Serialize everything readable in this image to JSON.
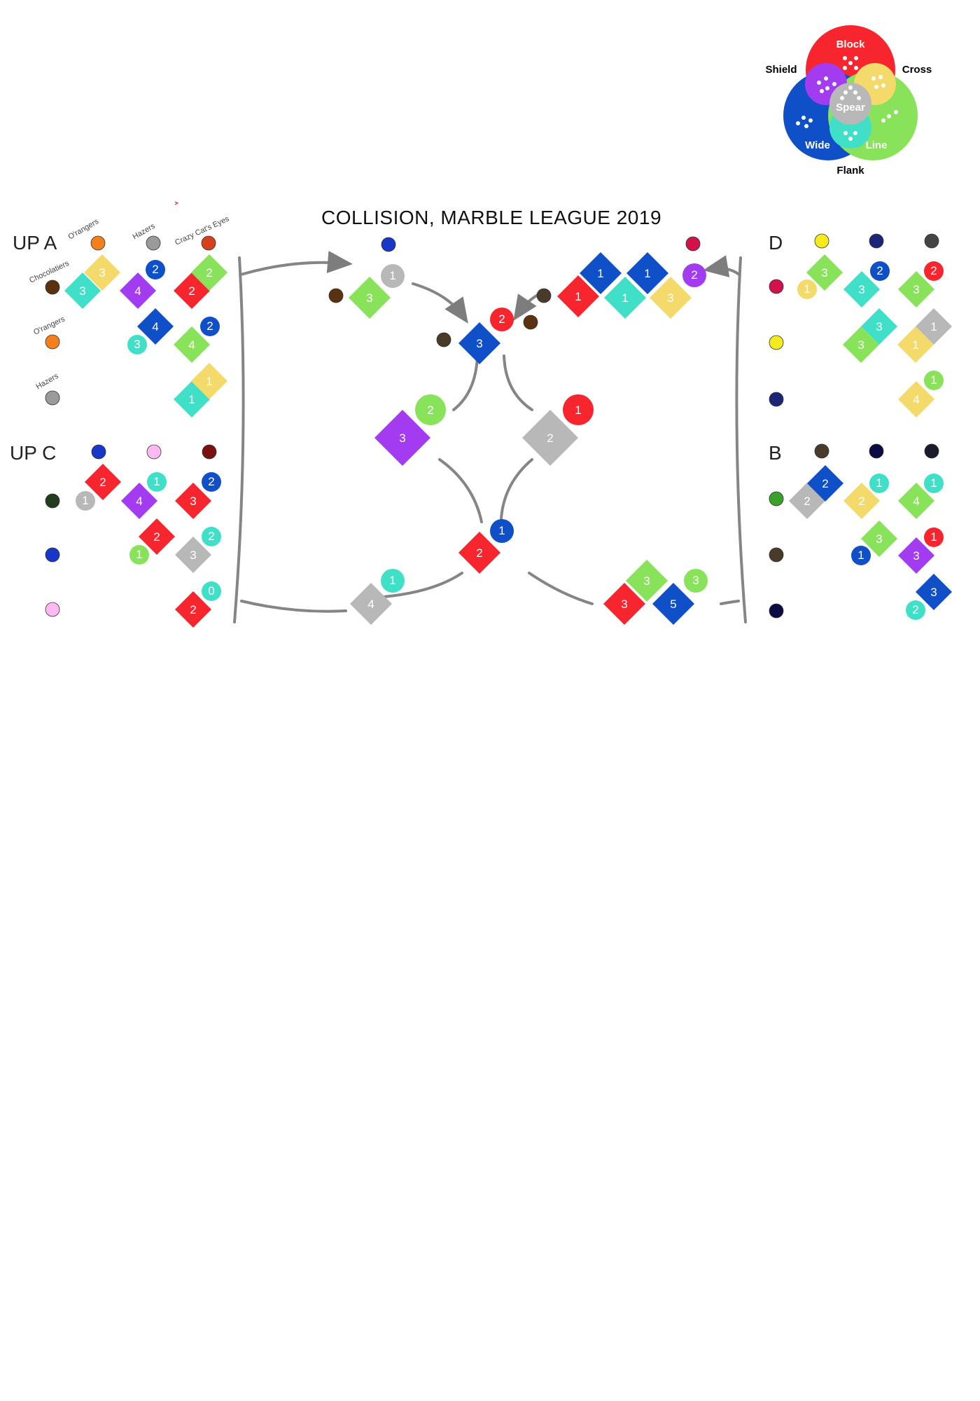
{
  "title": "COLLISION, MARBLE LEAGUE 2019",
  "colors": {
    "Block": "#f7262e",
    "Cross": "#f3da6a",
    "Line": "#88e35a",
    "Flank": "#40e0c8",
    "Wide": "#0f4fc8",
    "Shield": "#a33cf0",
    "Spear": "#b8b8b8"
  },
  "legend": {
    "block": "Block",
    "cross": "Cross",
    "line": "Line",
    "flank": "Flank",
    "wide": "Wide",
    "shield": "Shield",
    "spear": "Spear"
  },
  "groups": {
    "upa": "UP A",
    "upc": "UP C",
    "d": "D",
    "b": "B"
  },
  "teams": {
    "orangers": "O'rangers",
    "hazers": "Hazers",
    "crazy_cats_eyes": "Crazy Cat's Eyes",
    "chocolatiers": "Chocolatiers"
  },
  "marble_colors": {
    "orangers": "#f47f1c",
    "hazers": "#9a9a9a",
    "chocolatiers": "#5a3210",
    "crazy_cats_eyes": "#d7401c",
    "blue_stripe": "#1737c9",
    "pink": "#ffb9f2",
    "maroon": "#7a1010",
    "darkgreen": "#213d1e",
    "crimson": "#d1124b",
    "yellow": "#f5ea1c",
    "navy": "#1c2576",
    "charcoal": "#444444",
    "green_ball": "#3aa22a",
    "dark_navy": "#0c0c45"
  },
  "marks": [
    {
      "id": "upa-1",
      "shape": "diamond",
      "style": "Flank",
      "value": "3"
    },
    {
      "id": "upa-2",
      "shape": "diamond",
      "style": "Cross",
      "value": "3"
    },
    {
      "id": "upa-3",
      "shape": "diamond",
      "style": "Shield",
      "value": "4"
    },
    {
      "id": "upa-4",
      "shape": "circle",
      "style": "Wide",
      "value": "2"
    },
    {
      "id": "upa-5",
      "shape": "diamond",
      "style": "Block",
      "value": "2"
    },
    {
      "id": "upa-6",
      "shape": "diamond",
      "style": "Line",
      "value": "2"
    },
    {
      "id": "upa-7",
      "shape": "circle",
      "style": "Flank",
      "value": "3"
    },
    {
      "id": "upa-8",
      "shape": "diamond",
      "style": "Wide",
      "value": "4"
    },
    {
      "id": "upa-9",
      "shape": "diamond",
      "style": "Line",
      "value": "4"
    },
    {
      "id": "upa-10",
      "shape": "circle",
      "style": "Wide",
      "value": "2"
    },
    {
      "id": "upa-11",
      "shape": "diamond",
      "style": "Flank",
      "value": "1"
    },
    {
      "id": "upa-12",
      "shape": "diamond",
      "style": "Cross",
      "value": "1"
    },
    {
      "id": "upc-1",
      "shape": "circle",
      "style": "Spear",
      "value": "1"
    },
    {
      "id": "upc-2",
      "shape": "diamond",
      "style": "Block",
      "value": "2"
    },
    {
      "id": "upc-3",
      "shape": "diamond",
      "style": "Shield",
      "value": "4"
    },
    {
      "id": "upc-4",
      "shape": "circle",
      "style": "Flank",
      "value": "1"
    },
    {
      "id": "upc-5",
      "shape": "diamond",
      "style": "Block",
      "value": "3"
    },
    {
      "id": "upc-6",
      "shape": "circle",
      "style": "Wide",
      "value": "2"
    },
    {
      "id": "upc-7",
      "shape": "circle",
      "style": "Line",
      "value": "1"
    },
    {
      "id": "upc-8",
      "shape": "diamond",
      "style": "Block",
      "value": "2"
    },
    {
      "id": "upc-9",
      "shape": "diamond",
      "style": "Spear",
      "value": "3"
    },
    {
      "id": "upc-10",
      "shape": "circle",
      "style": "Flank",
      "value": "2"
    },
    {
      "id": "upc-11",
      "shape": "diamond",
      "style": "Block",
      "value": "2"
    },
    {
      "id": "upc-12",
      "shape": "circle",
      "style": "Flank",
      "value": "0"
    },
    {
      "id": "c-1",
      "shape": "circle",
      "style": "Spear",
      "value": "1"
    },
    {
      "id": "c-2",
      "shape": "diamond",
      "style": "Line",
      "value": "3"
    },
    {
      "id": "c-3",
      "shape": "diamond",
      "style": "Block",
      "value": "1"
    },
    {
      "id": "c-4",
      "shape": "diamond",
      "style": "Wide",
      "value": "1"
    },
    {
      "id": "c-5",
      "shape": "diamond",
      "style": "Flank",
      "value": "1"
    },
    {
      "id": "c-6",
      "shape": "diamond",
      "style": "Wide",
      "value": "1"
    },
    {
      "id": "c-7",
      "shape": "diamond",
      "style": "Cross",
      "value": "3"
    },
    {
      "id": "c-8",
      "shape": "circle",
      "style": "Shield",
      "value": "2"
    },
    {
      "id": "c-9",
      "shape": "circle",
      "style": "Block",
      "value": "2"
    },
    {
      "id": "c-10",
      "shape": "diamond",
      "style": "Wide",
      "value": "3"
    },
    {
      "id": "c-11",
      "shape": "diamond",
      "style": "Shield",
      "value": "3"
    },
    {
      "id": "c-12",
      "shape": "circle",
      "style": "Line",
      "value": "2"
    },
    {
      "id": "c-13",
      "shape": "diamond",
      "style": "Spear",
      "value": "2"
    },
    {
      "id": "c-14",
      "shape": "circle",
      "style": "Block",
      "value": "1"
    },
    {
      "id": "c-15",
      "shape": "diamond",
      "style": "Block",
      "value": "2"
    },
    {
      "id": "c-16",
      "shape": "circle",
      "style": "Wide",
      "value": "1"
    },
    {
      "id": "c-17",
      "shape": "diamond",
      "style": "Spear",
      "value": "4"
    },
    {
      "id": "c-18",
      "shape": "circle",
      "style": "Flank",
      "value": "1"
    },
    {
      "id": "c-19",
      "shape": "diamond",
      "style": "Block",
      "value": "3"
    },
    {
      "id": "c-20",
      "shape": "diamond",
      "style": "Line",
      "value": "3"
    },
    {
      "id": "c-21",
      "shape": "diamond",
      "style": "Wide",
      "value": "5"
    },
    {
      "id": "c-22",
      "shape": "circle",
      "style": "Line",
      "value": "3"
    },
    {
      "id": "d-1",
      "shape": "diamond",
      "style": "Line",
      "value": "3"
    },
    {
      "id": "d-2",
      "shape": "circle",
      "style": "Cross",
      "value": "1"
    },
    {
      "id": "d-3",
      "shape": "diamond",
      "style": "Flank",
      "value": "3"
    },
    {
      "id": "d-4",
      "shape": "circle",
      "style": "Wide",
      "value": "2"
    },
    {
      "id": "d-5",
      "shape": "diamond",
      "style": "Line",
      "value": "3"
    },
    {
      "id": "d-6",
      "shape": "circle",
      "style": "Block",
      "value": "2"
    },
    {
      "id": "d-7",
      "shape": "diamond",
      "style": "Flank",
      "value": "3"
    },
    {
      "id": "d-8",
      "shape": "diamond",
      "style": "Line",
      "value": "3"
    },
    {
      "id": "d-9",
      "shape": "diamond",
      "style": "Cross",
      "value": "1"
    },
    {
      "id": "d-10",
      "shape": "diamond",
      "style": "Spear",
      "value": "1"
    },
    {
      "id": "d-11",
      "shape": "diamond",
      "style": "Cross",
      "value": "4"
    },
    {
      "id": "d-12",
      "shape": "circle",
      "style": "Line",
      "value": "1"
    },
    {
      "id": "b-1",
      "shape": "diamond",
      "style": "Spear",
      "value": "2"
    },
    {
      "id": "b-2",
      "shape": "diamond",
      "style": "Wide",
      "value": "2"
    },
    {
      "id": "b-3",
      "shape": "diamond",
      "style": "Cross",
      "value": "2"
    },
    {
      "id": "b-4",
      "shape": "circle",
      "style": "Flank",
      "value": "1"
    },
    {
      "id": "b-5",
      "shape": "diamond",
      "style": "Line",
      "value": "4"
    },
    {
      "id": "b-6",
      "shape": "circle",
      "style": "Flank",
      "value": "1"
    },
    {
      "id": "b-7",
      "shape": "circle",
      "style": "Wide",
      "value": "1"
    },
    {
      "id": "b-8",
      "shape": "diamond",
      "style": "Line",
      "value": "3"
    },
    {
      "id": "b-9",
      "shape": "diamond",
      "style": "Shield",
      "value": "3"
    },
    {
      "id": "b-10",
      "shape": "circle",
      "style": "Block",
      "value": "1"
    },
    {
      "id": "b-11",
      "shape": "circle",
      "style": "Flank",
      "value": "2"
    },
    {
      "id": "b-12",
      "shape": "diamond",
      "style": "Wide",
      "value": "3"
    }
  ]
}
